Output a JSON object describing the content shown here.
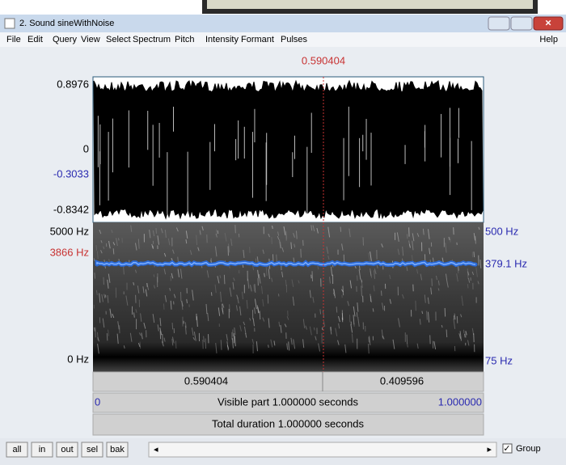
{
  "window": {
    "title": "2. Sound sineWithNoise",
    "menu": [
      "File",
      "Edit",
      "Query",
      "View",
      "Select",
      "Spectrum",
      "Pitch",
      "Intensity",
      "Formant",
      "Pulses"
    ],
    "help": "Help"
  },
  "cursor": {
    "time": "0.590404"
  },
  "waveform": {
    "top": "0.8976",
    "zero": "0",
    "cursor_value": "-0.3033",
    "bottom": "-0.8342"
  },
  "spectrogram": {
    "top": "5000 Hz",
    "cursor_freq": "3866 Hz",
    "bottom": "0 Hz"
  },
  "pitch": {
    "top": "500 Hz",
    "value": "379.1 Hz",
    "bottom": "75 Hz"
  },
  "time_bar": {
    "left": "0.590404",
    "right": "0.409596"
  },
  "visible_bar": {
    "start": "0",
    "label": "Visible part 1.000000 seconds",
    "end": "1.000000"
  },
  "total_bar": {
    "label": "Total duration 1.000000 seconds"
  },
  "buttons": [
    "all",
    "in",
    "out",
    "sel",
    "bak"
  ],
  "group": "Group"
}
